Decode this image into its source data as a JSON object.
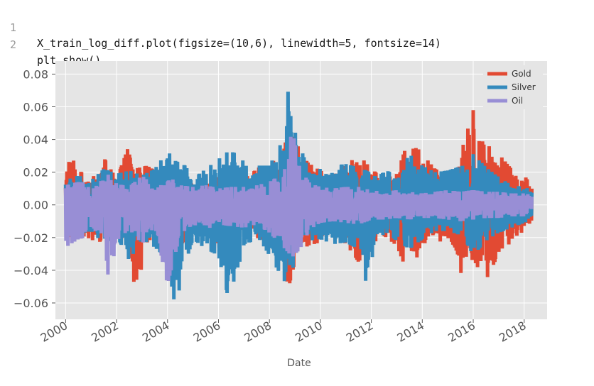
{
  "code_cell": {
    "lines": [
      {
        "number": "1",
        "text": "X_train_log_diff.plot(figsize=(10,6), linewidth=5, fontsize=14)"
      },
      {
        "number": "2",
        "text": "plt.show()"
      }
    ]
  },
  "chart_data": {
    "type": "line",
    "style": "ggplot",
    "xlabel": "Date",
    "ylabel": "",
    "title": "",
    "xlim": [
      1999.6,
      2018.9
    ],
    "ylim": [
      -0.07,
      0.088
    ],
    "x_ticks": [
      "2000",
      "2002",
      "2004",
      "2006",
      "2008",
      "2010",
      "2012",
      "2014",
      "2016",
      "2018"
    ],
    "x_tick_values": [
      2000,
      2002,
      2004,
      2006,
      2008,
      2010,
      2012,
      2014,
      2016,
      2018
    ],
    "y_ticks": [
      "0.08",
      "0.06",
      "0.04",
      "0.02",
      "0.00",
      "−0.02",
      "−0.04",
      "−0.06"
    ],
    "y_tick_values": [
      0.08,
      0.06,
      0.04,
      0.02,
      0.0,
      -0.02,
      -0.04,
      -0.06
    ],
    "grid": true,
    "legend_position": "top-right",
    "x_range": [
      2000.0,
      2018.3
    ],
    "series": [
      {
        "name": "Gold",
        "color": "#e24a33",
        "envelope": [
          [
            2000.0,
            0.013,
            -0.012
          ],
          [
            2000.1,
            0.034,
            -0.024
          ],
          [
            2000.5,
            0.021,
            -0.018
          ],
          [
            2001.0,
            0.017,
            -0.021
          ],
          [
            2001.3,
            0.019,
            -0.024
          ],
          [
            2001.5,
            0.029,
            -0.018
          ],
          [
            2002.0,
            0.016,
            -0.017
          ],
          [
            2002.5,
            0.037,
            -0.025
          ],
          [
            2002.7,
            0.022,
            -0.059
          ],
          [
            2003.2,
            0.024,
            -0.023
          ],
          [
            2003.8,
            0.018,
            -0.015
          ],
          [
            2004.5,
            0.021,
            -0.026
          ],
          [
            2005.0,
            0.012,
            -0.012
          ],
          [
            2005.5,
            0.014,
            -0.014
          ],
          [
            2006.0,
            0.021,
            -0.026
          ],
          [
            2006.4,
            0.024,
            -0.027
          ],
          [
            2007.0,
            0.016,
            -0.014
          ],
          [
            2007.6,
            0.023,
            -0.021
          ],
          [
            2008.0,
            0.026,
            -0.022
          ],
          [
            2008.5,
            0.029,
            -0.033
          ],
          [
            2008.75,
            0.047,
            -0.051
          ],
          [
            2009.0,
            0.039,
            -0.035
          ],
          [
            2009.5,
            0.026,
            -0.025
          ],
          [
            2010.0,
            0.021,
            -0.023
          ],
          [
            2010.5,
            0.018,
            -0.016
          ],
          [
            2011.0,
            0.024,
            -0.024
          ],
          [
            2011.5,
            0.031,
            -0.035
          ],
          [
            2012.0,
            0.022,
            -0.024
          ],
          [
            2012.5,
            0.016,
            -0.019
          ],
          [
            2013.0,
            0.019,
            -0.025
          ],
          [
            2013.3,
            0.033,
            -0.037
          ],
          [
            2013.8,
            0.035,
            -0.032
          ],
          [
            2014.5,
            0.022,
            -0.022
          ],
          [
            2015.0,
            0.019,
            -0.023
          ],
          [
            2015.5,
            0.031,
            -0.042
          ],
          [
            2016.0,
            0.058,
            -0.033
          ],
          [
            2016.4,
            0.037,
            -0.045
          ],
          [
            2016.8,
            0.035,
            -0.043
          ],
          [
            2017.5,
            0.022,
            -0.021
          ],
          [
            2018.0,
            0.018,
            -0.016
          ],
          [
            2018.3,
            0.012,
            -0.012
          ]
        ]
      },
      {
        "name": "Silver",
        "color": "#348abd",
        "envelope": [
          [
            2000.0,
            0.015,
            -0.015
          ],
          [
            2000.5,
            0.018,
            -0.018
          ],
          [
            2001.0,
            0.015,
            -0.016
          ],
          [
            2001.5,
            0.022,
            -0.024
          ],
          [
            2002.0,
            0.019,
            -0.019
          ],
          [
            2002.5,
            0.021,
            -0.034
          ],
          [
            2003.0,
            0.018,
            -0.021
          ],
          [
            2003.5,
            0.022,
            -0.026
          ],
          [
            2004.0,
            0.033,
            -0.033
          ],
          [
            2004.3,
            0.027,
            -0.063
          ],
          [
            2004.7,
            0.024,
            -0.036
          ],
          [
            2005.0,
            0.016,
            -0.021
          ],
          [
            2005.5,
            0.022,
            -0.027
          ],
          [
            2006.0,
            0.028,
            -0.031
          ],
          [
            2006.4,
            0.033,
            -0.058
          ],
          [
            2006.8,
            0.031,
            -0.036
          ],
          [
            2007.2,
            0.021,
            -0.023
          ],
          [
            2007.6,
            0.024,
            -0.021
          ],
          [
            2008.0,
            0.024,
            -0.031
          ],
          [
            2008.6,
            0.042,
            -0.047
          ],
          [
            2008.75,
            0.073,
            -0.047
          ],
          [
            2009.0,
            0.045,
            -0.035
          ],
          [
            2009.5,
            0.023,
            -0.022
          ],
          [
            2010.0,
            0.022,
            -0.021
          ],
          [
            2010.5,
            0.024,
            -0.024
          ],
          [
            2011.0,
            0.025,
            -0.023
          ],
          [
            2011.5,
            0.023,
            -0.027
          ],
          [
            2011.8,
            0.021,
            -0.048
          ],
          [
            2012.2,
            0.017,
            -0.021
          ],
          [
            2012.6,
            0.021,
            -0.017
          ],
          [
            2013.0,
            0.018,
            -0.022
          ],
          [
            2013.5,
            0.031,
            -0.027
          ],
          [
            2014.0,
            0.024,
            -0.021
          ],
          [
            2014.5,
            0.02,
            -0.016
          ],
          [
            2015.0,
            0.021,
            -0.016
          ],
          [
            2015.6,
            0.024,
            -0.019
          ],
          [
            2016.0,
            0.031,
            -0.031
          ],
          [
            2016.5,
            0.023,
            -0.022
          ],
          [
            2017.0,
            0.017,
            -0.017
          ],
          [
            2017.5,
            0.012,
            -0.014
          ],
          [
            2018.0,
            0.011,
            -0.011
          ],
          [
            2018.3,
            0.009,
            -0.009
          ]
        ]
      },
      {
        "name": "Oil",
        "color": "#988ed5",
        "envelope": [
          [
            2000.0,
            0.012,
            -0.026
          ],
          [
            2000.5,
            0.014,
            -0.021
          ],
          [
            2001.0,
            0.013,
            -0.019
          ],
          [
            2001.5,
            0.015,
            -0.017
          ],
          [
            2001.7,
            0.019,
            -0.049
          ],
          [
            2002.0,
            0.013,
            -0.022
          ],
          [
            2002.5,
            0.011,
            -0.015
          ],
          [
            2003.0,
            0.018,
            -0.024
          ],
          [
            2003.5,
            0.011,
            -0.013
          ],
          [
            2004.0,
            0.018,
            -0.049
          ],
          [
            2004.5,
            0.012,
            -0.018
          ],
          [
            2005.0,
            0.011,
            -0.012
          ],
          [
            2005.5,
            0.012,
            -0.015
          ],
          [
            2006.0,
            0.01,
            -0.012
          ],
          [
            2006.5,
            0.011,
            -0.013
          ],
          [
            2007.0,
            0.011,
            -0.014
          ],
          [
            2007.5,
            0.012,
            -0.012
          ],
          [
            2008.0,
            0.014,
            -0.017
          ],
          [
            2008.5,
            0.019,
            -0.025
          ],
          [
            2008.9,
            0.046,
            -0.032
          ],
          [
            2009.2,
            0.022,
            -0.027
          ],
          [
            2009.6,
            0.013,
            -0.015
          ],
          [
            2010.0,
            0.011,
            -0.011
          ],
          [
            2010.5,
            0.01,
            -0.01
          ],
          [
            2011.0,
            0.011,
            -0.011
          ],
          [
            2011.5,
            0.011,
            -0.012
          ],
          [
            2012.0,
            0.009,
            -0.009
          ],
          [
            2012.5,
            0.008,
            -0.009
          ],
          [
            2013.0,
            0.009,
            -0.008
          ],
          [
            2013.5,
            0.008,
            -0.009
          ],
          [
            2014.0,
            0.007,
            -0.008
          ],
          [
            2014.5,
            0.008,
            -0.008
          ],
          [
            2015.0,
            0.009,
            -0.009
          ],
          [
            2015.5,
            0.008,
            -0.01
          ],
          [
            2016.0,
            0.009,
            -0.009
          ],
          [
            2016.5,
            0.008,
            -0.008
          ],
          [
            2017.0,
            0.008,
            -0.008
          ],
          [
            2017.5,
            0.007,
            -0.007
          ],
          [
            2018.0,
            0.007,
            -0.007
          ],
          [
            2018.3,
            0.006,
            -0.006
          ]
        ]
      }
    ]
  }
}
